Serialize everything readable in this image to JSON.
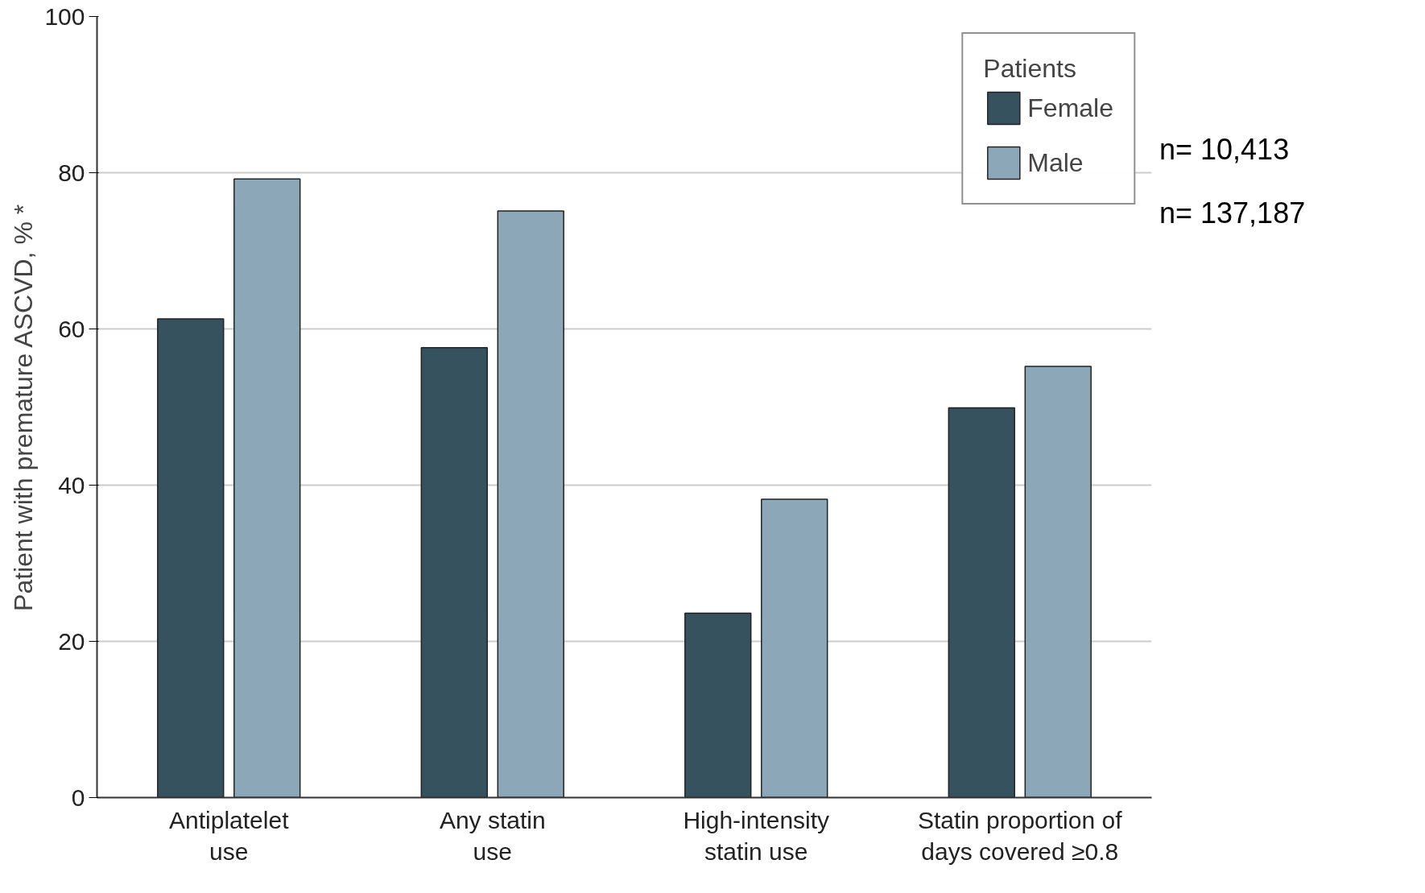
{
  "chart_data": {
    "type": "bar",
    "ylabel": "Patient with premature ASCVD, % *",
    "categories": [
      "Antiplatelet\nuse",
      "Any statin\nuse",
      "High-intensity\nstatin use",
      "Statin proportion of\ndays covered ≥0.8"
    ],
    "series": [
      {
        "name": "Female",
        "color": "#36525f",
        "values": [
          61.3,
          57.6,
          23.6,
          49.9
        ]
      },
      {
        "name": "Male",
        "color": "#8ca8b8",
        "values": [
          79.2,
          75.1,
          38.2,
          55.2
        ]
      }
    ],
    "legend_title": "Patients",
    "legend": "top right",
    "annotations": [
      "n= 10,413",
      "n= 137,187"
    ],
    "ylim": [
      0,
      100
    ],
    "yticks": [
      0,
      20,
      40,
      60,
      80,
      100
    ],
    "grid": "y"
  }
}
